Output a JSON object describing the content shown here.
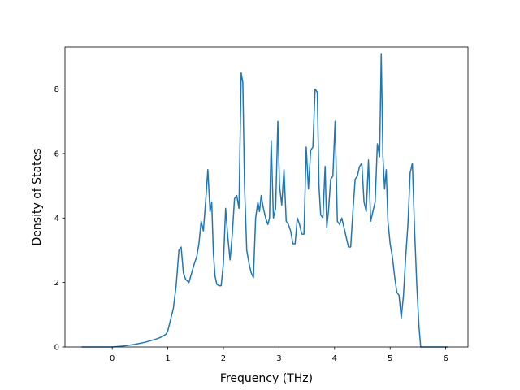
{
  "chart_data": {
    "type": "line",
    "title": "",
    "xlabel": "Frequency (THz)",
    "ylabel": "Density of States",
    "xlim": [
      -0.85,
      6.4
    ],
    "ylim": [
      0,
      9.3
    ],
    "xticks": [
      0,
      1,
      2,
      3,
      4,
      5,
      6
    ],
    "yticks": [
      0,
      2,
      4,
      6,
      8
    ],
    "grid": false,
    "legend": "none",
    "series": [
      {
        "color": "#1f77b4",
        "x": [
          -0.55,
          0.0,
          0.2,
          0.4,
          0.6,
          0.8,
          0.9,
          0.97,
          1.0,
          1.05,
          1.1,
          1.15,
          1.2,
          1.24,
          1.28,
          1.32,
          1.38,
          1.43,
          1.48,
          1.52,
          1.56,
          1.6,
          1.64,
          1.68,
          1.72,
          1.76,
          1.79,
          1.82,
          1.85,
          1.88,
          1.92,
          1.96,
          2.0,
          2.04,
          2.08,
          2.12,
          2.16,
          2.2,
          2.24,
          2.28,
          2.32,
          2.35,
          2.38,
          2.42,
          2.46,
          2.5,
          2.54,
          2.58,
          2.62,
          2.65,
          2.68,
          2.72,
          2.76,
          2.8,
          2.83,
          2.86,
          2.9,
          2.94,
          2.98,
          3.01,
          3.05,
          3.09,
          3.13,
          3.17,
          3.21,
          3.25,
          3.29,
          3.33,
          3.37,
          3.41,
          3.45,
          3.49,
          3.53,
          3.57,
          3.61,
          3.65,
          3.69,
          3.72,
          3.75,
          3.79,
          3.83,
          3.86,
          3.89,
          3.93,
          3.97,
          4.01,
          4.05,
          4.09,
          4.13,
          4.17,
          4.21,
          4.25,
          4.29,
          4.33,
          4.37,
          4.41,
          4.45,
          4.49,
          4.53,
          4.57,
          4.61,
          4.65,
          4.69,
          4.73,
          4.77,
          4.81,
          4.84,
          4.87,
          4.9,
          4.93,
          4.96,
          5.0,
          5.04,
          5.08,
          5.12,
          5.16,
          5.2,
          5.24,
          5.28,
          5.32,
          5.36,
          5.4,
          5.44,
          5.48,
          5.52,
          5.55,
          5.6,
          6.05
        ],
        "y": [
          0.0,
          0.0,
          0.03,
          0.08,
          0.15,
          0.25,
          0.32,
          0.4,
          0.5,
          0.85,
          1.2,
          1.9,
          3.0,
          3.1,
          2.3,
          2.1,
          2.0,
          2.3,
          2.6,
          2.8,
          3.2,
          3.9,
          3.6,
          4.5,
          5.5,
          4.2,
          4.5,
          2.9,
          2.2,
          1.95,
          1.9,
          1.9,
          2.6,
          4.3,
          3.4,
          2.7,
          3.5,
          4.6,
          4.7,
          4.3,
          8.5,
          8.2,
          5.0,
          3.0,
          2.6,
          2.3,
          2.15,
          4.0,
          4.5,
          4.2,
          4.7,
          4.3,
          4.0,
          3.8,
          4.0,
          6.4,
          4.0,
          4.3,
          7.0,
          5.0,
          4.4,
          5.5,
          3.9,
          3.8,
          3.6,
          3.2,
          3.2,
          4.0,
          3.8,
          3.5,
          3.5,
          6.2,
          4.9,
          6.1,
          6.2,
          8.0,
          7.9,
          5.0,
          4.1,
          4.0,
          5.6,
          3.7,
          4.2,
          5.2,
          5.3,
          7.0,
          3.9,
          3.8,
          4.0,
          3.7,
          3.4,
          3.1,
          3.1,
          4.2,
          5.2,
          5.3,
          5.6,
          5.7,
          4.5,
          4.2,
          5.8,
          3.9,
          4.2,
          4.5,
          6.3,
          5.9,
          9.1,
          5.9,
          4.9,
          5.5,
          3.9,
          3.2,
          2.8,
          2.2,
          1.7,
          1.6,
          0.9,
          1.6,
          2.8,
          3.8,
          5.4,
          5.7,
          3.6,
          1.9,
          0.6,
          0.0,
          0.0,
          0.0
        ]
      }
    ]
  }
}
